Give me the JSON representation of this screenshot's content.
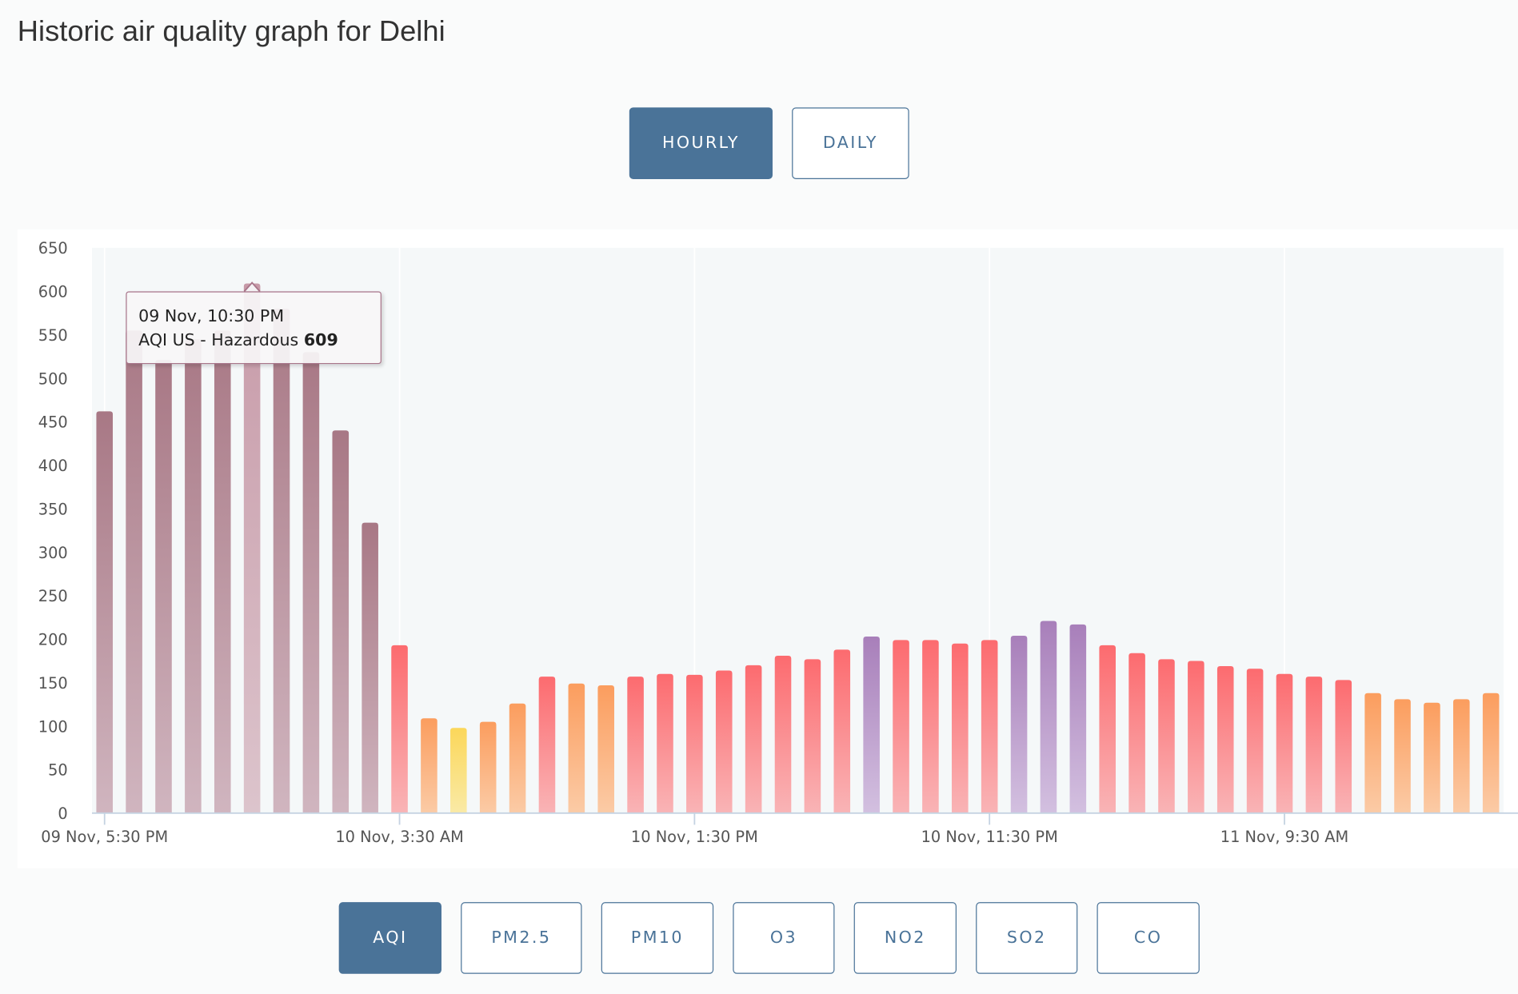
{
  "title": "Historic air quality graph for Delhi",
  "range_buttons": [
    {
      "label": "HOURLY",
      "active": true
    },
    {
      "label": "DAILY",
      "active": false
    }
  ],
  "pollutant_buttons": [
    {
      "label": "AQI",
      "active": true
    },
    {
      "label": "PM2.5"
    },
    {
      "label": "PM10"
    },
    {
      "label": "O3"
    },
    {
      "label": "NO2"
    },
    {
      "label": "SO2"
    },
    {
      "label": "CO"
    }
  ],
  "tooltip": {
    "time": "09 Nov, 10:30 PM",
    "label": "AQI US - Hazardous",
    "value": "609"
  },
  "chart_data": {
    "type": "bar",
    "title": "Historic air quality graph for Delhi",
    "ylabel": "AQI US",
    "xlabel": "",
    "ylim": [
      0,
      650
    ],
    "yticks": [
      0,
      50,
      100,
      150,
      200,
      250,
      300,
      350,
      400,
      450,
      500,
      550,
      600,
      650
    ],
    "xtick_labels": [
      {
        "index": 0,
        "label": "09 Nov, 5:30 PM"
      },
      {
        "index": 10,
        "label": "10 Nov, 3:30 AM"
      },
      {
        "index": 20,
        "label": "10 Nov, 1:30 PM"
      },
      {
        "index": 30,
        "label": "10 Nov, 11:30 PM"
      },
      {
        "index": 40,
        "label": "11 Nov, 9:30 AM"
      }
    ],
    "values": [
      462,
      555,
      521,
      545,
      555,
      609,
      580,
      530,
      440,
      334,
      193,
      109,
      98,
      105,
      126,
      157,
      149,
      147,
      157,
      160,
      159,
      164,
      170,
      181,
      177,
      188,
      203,
      199,
      199,
      195,
      199,
      204,
      221,
      217,
      193,
      184,
      177,
      175,
      169,
      166,
      160,
      157,
      153,
      138,
      131,
      127,
      131,
      138
    ],
    "highlighted_index": 5,
    "colors": {
      "hazardous": "#a87885",
      "very_unhealthy": "#a87fba",
      "unhealthy": "#fc6b6f",
      "sensitive": "#fb9d5e",
      "moderate": "#fbd75a"
    },
    "grid": true
  }
}
